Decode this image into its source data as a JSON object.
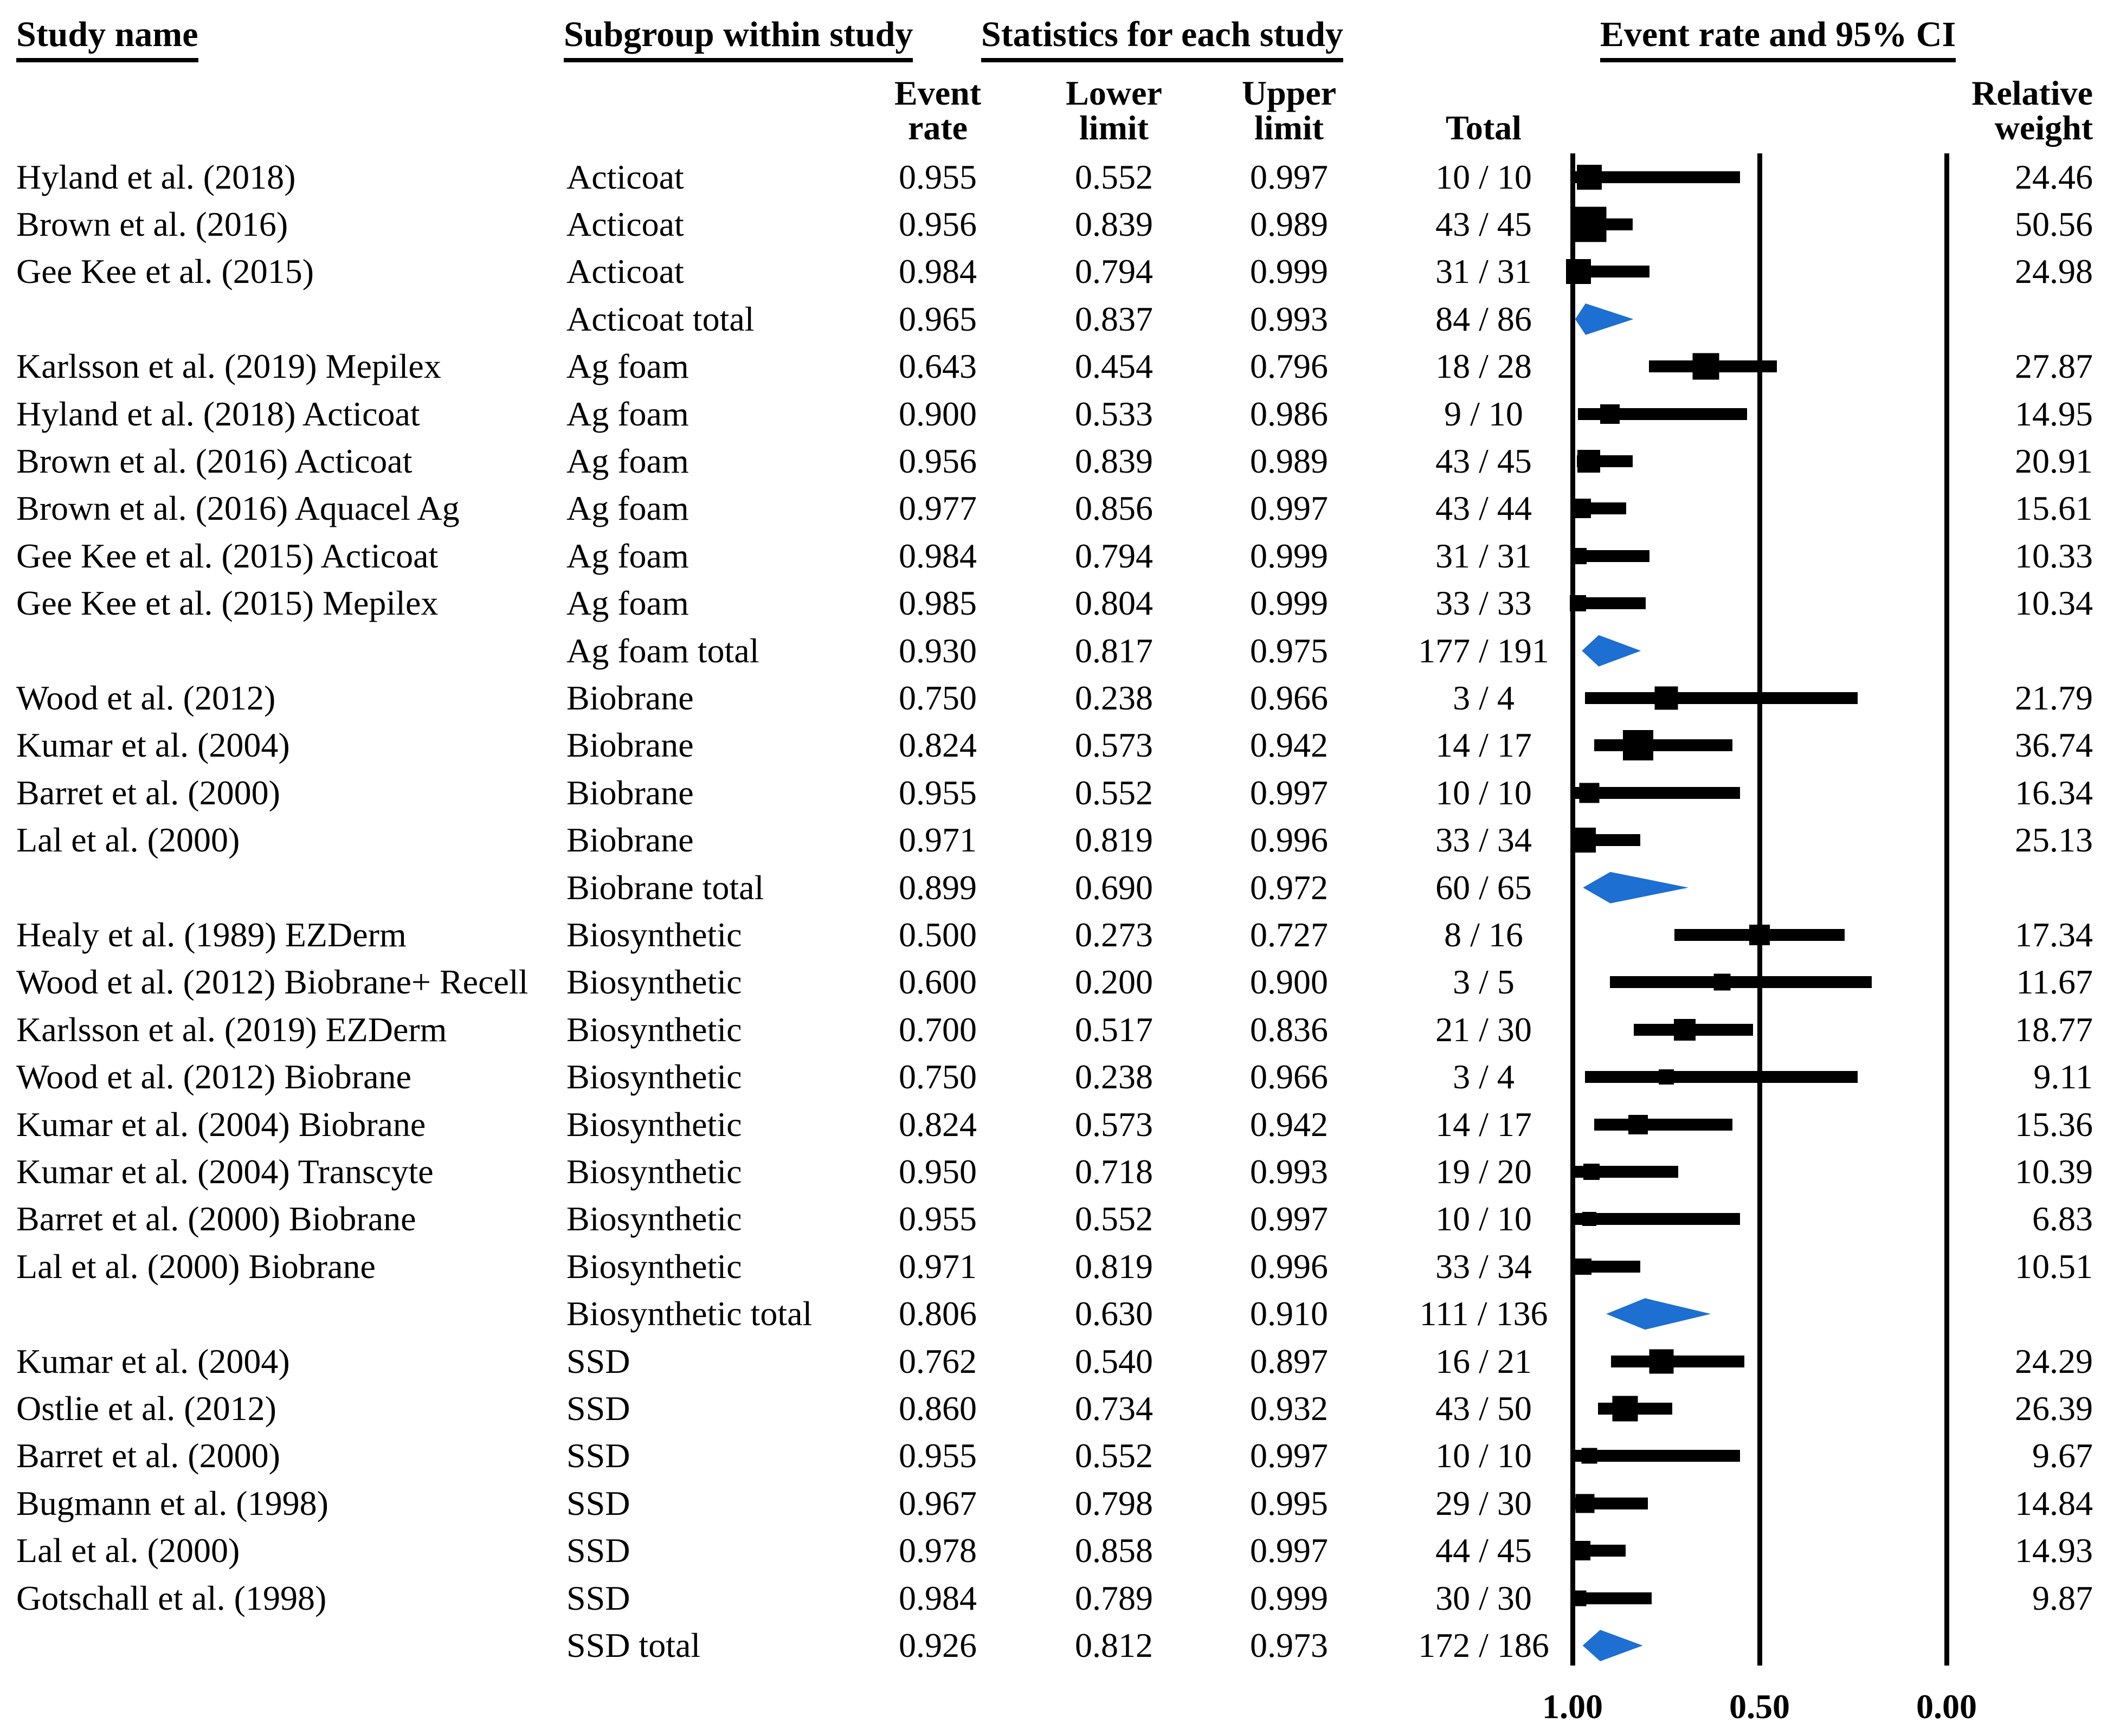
{
  "header": {
    "study_name": "Study name",
    "subgroup": "Subgroup within study",
    "statistics": "Statistics for each study",
    "event_rate_ci": "Event rate and 95% CI",
    "col_event_rate": "Event\nrate",
    "col_lower_limit": "Lower\nlimit",
    "col_upper_limit": "Upper\nlimit",
    "col_total": "Total",
    "col_relative_weight": "Relative\nweight"
  },
  "colors": {
    "marker": "#000000",
    "summary_diamond": "#1d6fd1",
    "background": "#ffffff"
  },
  "chart_data": {
    "type": "forest",
    "title": "Event rate and 95% CI",
    "x_axis": {
      "direction": "reversed",
      "ticks": [
        "1.00",
        "0.50",
        "0.00"
      ],
      "tick_values": [
        1.0,
        0.5,
        0.0
      ],
      "range": [
        1.0,
        0.0
      ]
    },
    "legend_position": "none",
    "grid": "vertical-reference-lines",
    "rows": [
      {
        "study": "Hyland et al. (2018)",
        "subgroup": "Acticoat",
        "event_rate": "0.955",
        "lower": "0.552",
        "upper": "0.997",
        "total": "10 / 10",
        "weight": "24.46",
        "kind": "study"
      },
      {
        "study": "Brown et al. (2016)",
        "subgroup": "Acticoat",
        "event_rate": "0.956",
        "lower": "0.839",
        "upper": "0.989",
        "total": "43 / 45",
        "weight": "50.56",
        "kind": "study"
      },
      {
        "study": "Gee Kee et al. (2015)",
        "subgroup": "Acticoat",
        "event_rate": "0.984",
        "lower": "0.794",
        "upper": "0.999",
        "total": "31 / 31",
        "weight": "24.98",
        "kind": "study"
      },
      {
        "study": "",
        "subgroup": "Acticoat total",
        "event_rate": "0.965",
        "lower": "0.837",
        "upper": "0.993",
        "total": "84 / 86",
        "weight": "",
        "kind": "total"
      },
      {
        "study": "Karlsson et al. (2019) Mepilex",
        "subgroup": "Ag foam",
        "event_rate": "0.643",
        "lower": "0.454",
        "upper": "0.796",
        "total": "18 / 28",
        "weight": "27.87",
        "kind": "study"
      },
      {
        "study": "Hyland et al. (2018) Acticoat",
        "subgroup": "Ag foam",
        "event_rate": "0.900",
        "lower": "0.533",
        "upper": "0.986",
        "total": "9 / 10",
        "weight": "14.95",
        "kind": "study"
      },
      {
        "study": "Brown et al. (2016) Acticoat",
        "subgroup": "Ag foam",
        "event_rate": "0.956",
        "lower": "0.839",
        "upper": "0.989",
        "total": "43 / 45",
        "weight": "20.91",
        "kind": "study"
      },
      {
        "study": "Brown et al. (2016) Aquacel Ag",
        "subgroup": "Ag foam",
        "event_rate": "0.977",
        "lower": "0.856",
        "upper": "0.997",
        "total": "43 / 44",
        "weight": "15.61",
        "kind": "study"
      },
      {
        "study": "Gee Kee et al. (2015) Acticoat",
        "subgroup": "Ag foam",
        "event_rate": "0.984",
        "lower": "0.794",
        "upper": "0.999",
        "total": "31 / 31",
        "weight": "10.33",
        "kind": "study"
      },
      {
        "study": "Gee Kee et al. (2015) Mepilex",
        "subgroup": "Ag foam",
        "event_rate": "0.985",
        "lower": "0.804",
        "upper": "0.999",
        "total": "33 / 33",
        "weight": "10.34",
        "kind": "study"
      },
      {
        "study": "",
        "subgroup": "Ag foam total",
        "event_rate": "0.930",
        "lower": "0.817",
        "upper": "0.975",
        "total": "177 / 191",
        "weight": "",
        "kind": "total"
      },
      {
        "study": "Wood et al. (2012)",
        "subgroup": "Biobrane",
        "event_rate": "0.750",
        "lower": "0.238",
        "upper": "0.966",
        "total": "3 / 4",
        "weight": "21.79",
        "kind": "study"
      },
      {
        "study": "Kumar et al. (2004)",
        "subgroup": "Biobrane",
        "event_rate": "0.824",
        "lower": "0.573",
        "upper": "0.942",
        "total": "14 / 17",
        "weight": "36.74",
        "kind": "study"
      },
      {
        "study": "Barret et al. (2000)",
        "subgroup": "Biobrane",
        "event_rate": "0.955",
        "lower": "0.552",
        "upper": "0.997",
        "total": "10 / 10",
        "weight": "16.34",
        "kind": "study"
      },
      {
        "study": "Lal et al. (2000)",
        "subgroup": "Biobrane",
        "event_rate": "0.971",
        "lower": "0.819",
        "upper": "0.996",
        "total": "33 / 34",
        "weight": "25.13",
        "kind": "study"
      },
      {
        "study": "",
        "subgroup": "Biobrane total",
        "event_rate": "0.899",
        "lower": "0.690",
        "upper": "0.972",
        "total": "60 / 65",
        "weight": "",
        "kind": "total"
      },
      {
        "study": "Healy et al. (1989) EZDerm",
        "subgroup": "Biosynthetic",
        "event_rate": "0.500",
        "lower": "0.273",
        "upper": "0.727",
        "total": "8 / 16",
        "weight": "17.34",
        "kind": "study"
      },
      {
        "study": "Wood et al. (2012) Biobrane+ Recell",
        "subgroup": "Biosynthetic",
        "event_rate": "0.600",
        "lower": "0.200",
        "upper": "0.900",
        "total": "3 / 5",
        "weight": "11.67",
        "kind": "study"
      },
      {
        "study": "Karlsson et al. (2019) EZDerm",
        "subgroup": "Biosynthetic",
        "event_rate": "0.700",
        "lower": "0.517",
        "upper": "0.836",
        "total": "21 / 30",
        "weight": "18.77",
        "kind": "study"
      },
      {
        "study": "Wood et al. (2012) Biobrane",
        "subgroup": "Biosynthetic",
        "event_rate": "0.750",
        "lower": "0.238",
        "upper": "0.966",
        "total": "3 / 4",
        "weight": "9.11",
        "kind": "study"
      },
      {
        "study": "Kumar et al. (2004) Biobrane",
        "subgroup": "Biosynthetic",
        "event_rate": "0.824",
        "lower": "0.573",
        "upper": "0.942",
        "total": "14 / 17",
        "weight": "15.36",
        "kind": "study"
      },
      {
        "study": "Kumar et al. (2004) Transcyte",
        "subgroup": "Biosynthetic",
        "event_rate": "0.950",
        "lower": "0.718",
        "upper": "0.993",
        "total": "19 / 20",
        "weight": "10.39",
        "kind": "study"
      },
      {
        "study": "Barret et al. (2000) Biobrane",
        "subgroup": "Biosynthetic",
        "event_rate": "0.955",
        "lower": "0.552",
        "upper": "0.997",
        "total": "10 / 10",
        "weight": "6.83",
        "kind": "study"
      },
      {
        "study": "Lal et al. (2000) Biobrane",
        "subgroup": "Biosynthetic",
        "event_rate": "0.971",
        "lower": "0.819",
        "upper": "0.996",
        "total": "33 / 34",
        "weight": "10.51",
        "kind": "study"
      },
      {
        "study": "",
        "subgroup": "Biosynthetic total",
        "event_rate": "0.806",
        "lower": "0.630",
        "upper": "0.910",
        "total": "111 / 136",
        "weight": "",
        "kind": "total"
      },
      {
        "study": "Kumar et al. (2004)",
        "subgroup": "SSD",
        "event_rate": "0.762",
        "lower": "0.540",
        "upper": "0.897",
        "total": "16 / 21",
        "weight": "24.29",
        "kind": "study"
      },
      {
        "study": "Ostlie et al. (2012)",
        "subgroup": "SSD",
        "event_rate": "0.860",
        "lower": "0.734",
        "upper": "0.932",
        "total": "43 / 50",
        "weight": "26.39",
        "kind": "study"
      },
      {
        "study": "Barret et al. (2000)",
        "subgroup": "SSD",
        "event_rate": "0.955",
        "lower": "0.552",
        "upper": "0.997",
        "total": "10 / 10",
        "weight": "9.67",
        "kind": "study"
      },
      {
        "study": "Bugmann et al. (1998)",
        "subgroup": "SSD",
        "event_rate": "0.967",
        "lower": "0.798",
        "upper": "0.995",
        "total": "29 / 30",
        "weight": "14.84",
        "kind": "study"
      },
      {
        "study": "Lal et al. (2000)",
        "subgroup": "SSD",
        "event_rate": "0.978",
        "lower": "0.858",
        "upper": "0.997",
        "total": "44 / 45",
        "weight": "14.93",
        "kind": "study"
      },
      {
        "study": "Gotschall et al. (1998)",
        "subgroup": "SSD",
        "event_rate": "0.984",
        "lower": "0.789",
        "upper": "0.999",
        "total": "30 / 30",
        "weight": "9.87",
        "kind": "study"
      },
      {
        "study": "",
        "subgroup": "SSD total",
        "event_rate": "0.926",
        "lower": "0.812",
        "upper": "0.973",
        "total": "172 / 186",
        "weight": "",
        "kind": "total"
      }
    ]
  }
}
